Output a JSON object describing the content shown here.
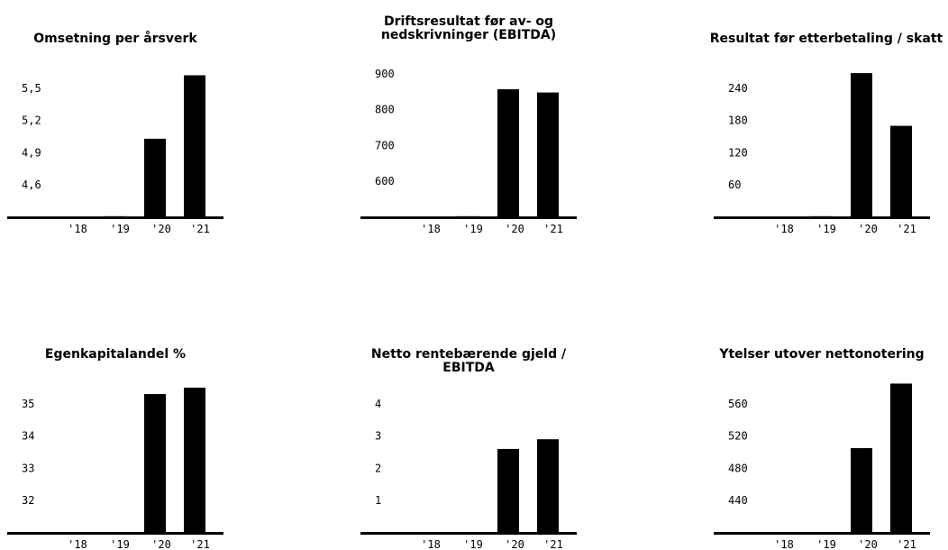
{
  "chart_data": [
    {
      "type": "bar",
      "title": "Omsetning per årsverk",
      "categories": [
        "'18",
        "'19",
        "'20",
        "'21"
      ],
      "values": [
        null,
        4.31,
        5.03,
        5.62
      ],
      "ylim": [
        4.3,
        5.8
      ],
      "yticks": [
        4.6,
        4.9,
        5.2,
        5.5
      ],
      "ytick_labels": [
        "4,6",
        "4,9",
        "5,2",
        "5,5"
      ],
      "grid": false
    },
    {
      "type": "bar",
      "title": "Driftsresultat før av- og\nnedskrivninger (EBITDA)",
      "categories": [
        "'18",
        "'19",
        "'20",
        "'21"
      ],
      "values": [
        null,
        503,
        857,
        848
      ],
      "ylim": [
        500,
        950
      ],
      "yticks": [
        600,
        700,
        800,
        900
      ],
      "ytick_labels": [
        "600",
        "700",
        "800",
        "900"
      ],
      "grid": false
    },
    {
      "type": "bar",
      "title": "Resultat før etterbetaling / skatt",
      "categories": [
        "'18",
        "'19",
        "'20",
        "'21"
      ],
      "values": [
        null,
        2,
        268,
        170
      ],
      "ylim": [
        0,
        300
      ],
      "yticks": [
        60,
        120,
        180,
        240
      ],
      "ytick_labels": [
        "60",
        "120",
        "180",
        "240"
      ],
      "grid": false
    },
    {
      "type": "bar",
      "title": "Egenkapitalandel %",
      "categories": [
        "'18",
        "'19",
        "'20",
        "'21"
      ],
      "values": [
        null,
        null,
        35.3,
        35.5
      ],
      "ylim": [
        31,
        36
      ],
      "yticks": [
        32,
        33,
        34,
        35
      ],
      "ytick_labels": [
        "32",
        "33",
        "34",
        "35"
      ],
      "grid": false
    },
    {
      "type": "bar",
      "title": "Netto rentebærende gjeld / EBITDA",
      "categories": [
        "'18",
        "'19",
        "'20",
        "'21"
      ],
      "values": [
        null,
        null,
        2.6,
        2.9
      ],
      "ylim": [
        0,
        5
      ],
      "yticks": [
        1,
        2,
        3,
        4
      ],
      "ytick_labels": [
        "1",
        "2",
        "3",
        "4"
      ],
      "grid": false
    },
    {
      "type": "bar",
      "title": "Ytelser utover nettonotering",
      "categories": [
        "'18",
        "'19",
        "'20",
        "'21"
      ],
      "values": [
        null,
        null,
        505,
        585
      ],
      "ylim": [
        400,
        600
      ],
      "yticks": [
        440,
        480,
        520,
        560
      ],
      "ytick_labels": [
        "440",
        "480",
        "520",
        "560"
      ],
      "grid": false
    }
  ]
}
